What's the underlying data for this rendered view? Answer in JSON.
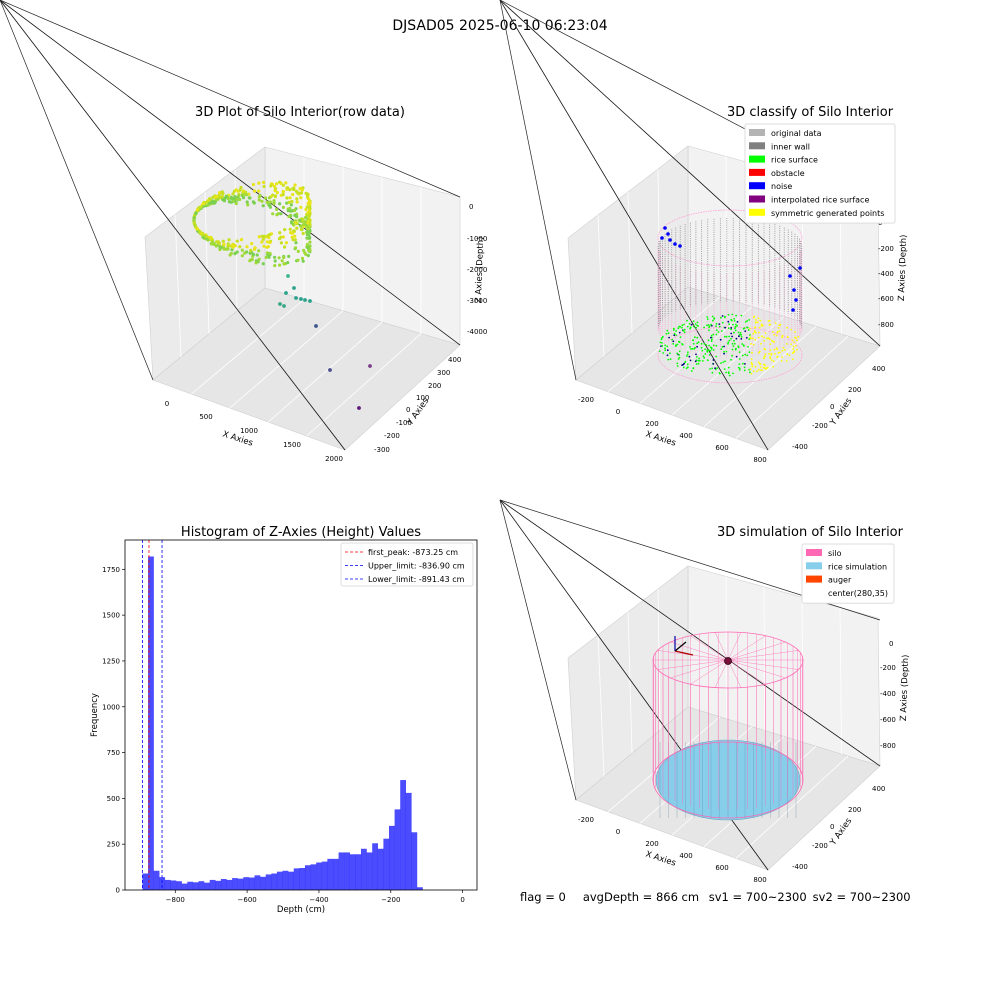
{
  "suptitle": "DJSAD05 2025-06-10 06:23:04",
  "panels": {
    "raw": {
      "title": "3D Plot of Silo Interior(row data)",
      "xlabel": "X Axies",
      "ylabel": "Y Axies",
      "zlabel": "Z Axies (Depth)",
      "xticks": [
        "0",
        "500",
        "1000",
        "1500",
        "2000"
      ],
      "yticks": [
        "400",
        "300",
        "200",
        "100",
        "0",
        "-100",
        "-200",
        "-300"
      ],
      "zticks": [
        "0",
        "-1000",
        "-2000",
        "-3000",
        "-4000"
      ]
    },
    "classify": {
      "title": "3D classify of Silo Interior",
      "xlabel": "X Axies",
      "ylabel": "Y Axies",
      "zlabel": "Z Axies (Depth)",
      "xticks": [
        "-200",
        "0",
        "200",
        "400",
        "600",
        "800"
      ],
      "yticks": [
        "400",
        "200",
        "0",
        "-200",
        "-400"
      ],
      "zticks": [
        "0",
        "-200",
        "-400",
        "-600",
        "-800"
      ],
      "legend": [
        {
          "label": "original data",
          "color": "#b3b3b3"
        },
        {
          "label": "inner wall",
          "color": "#808080"
        },
        {
          "label": "rice surface",
          "color": "#00ff00"
        },
        {
          "label": "obstacle",
          "color": "#ff0000"
        },
        {
          "label": "noise",
          "color": "#0000ff"
        },
        {
          "label": "interpolated rice surface",
          "color": "#800080"
        },
        {
          "label": "symmetric generated points",
          "color": "#ffff00"
        }
      ]
    },
    "simulation": {
      "title": "3D simulation of Silo Interior",
      "xlabel": "X Axies",
      "ylabel": "Y Axies",
      "zlabel": "Z Axies (Depth)",
      "xticks": [
        "-200",
        "0",
        "200",
        "400",
        "600",
        "800"
      ],
      "yticks": [
        "400",
        "200",
        "0",
        "-200",
        "-400"
      ],
      "zticks": [
        "0",
        "-200",
        "-400",
        "-600",
        "-800"
      ],
      "legend": [
        {
          "label": "silo",
          "color": "#ff69b4"
        },
        {
          "label": "rice simulation",
          "color": "#87ceeb"
        },
        {
          "label": "auger",
          "color": "#ff4500"
        },
        {
          "label": "center(280,35)",
          "color": ""
        }
      ]
    }
  },
  "footer": {
    "flag": "flag = 0",
    "avg": "avgDepth = 866 cm",
    "sv1": "sv1 = 700~2300",
    "sv2": "sv2 = 700~2300"
  },
  "chart_data": {
    "type": "bar",
    "title": "Histogram of Z-Axies (Height) Values",
    "xlabel": "Depth (cm)",
    "ylabel": "Frequency",
    "xlim": [
      -940,
      40
    ],
    "ylim": [
      0,
      1910
    ],
    "xticks": [
      -800,
      -600,
      -400,
      -200,
      0
    ],
    "yticks": [
      0,
      250,
      500,
      750,
      1000,
      1250,
      1500,
      1750
    ],
    "bin_width": 15.6,
    "bin_start": -891.4,
    "color": "#0000ff",
    "values": [
      90,
      1820,
      105,
      70,
      55,
      52,
      48,
      35,
      45,
      42,
      48,
      40,
      55,
      50,
      60,
      55,
      65,
      62,
      70,
      68,
      80,
      72,
      85,
      90,
      100,
      105,
      100,
      118,
      120,
      135,
      140,
      150,
      155,
      170,
      170,
      205,
      205,
      195,
      195,
      225,
      205,
      255,
      225,
      280,
      350,
      440,
      600,
      530,
      315,
      15
    ],
    "vlines": [
      {
        "label": "first_peak: -873.25 cm",
        "x": -873.25,
        "color": "#ff0000"
      },
      {
        "label": "Upper_limit: -836.90 cm",
        "x": -836.9,
        "color": "#0000ff"
      },
      {
        "label": "Lower_limit: -891.43 cm",
        "x": -891.43,
        "color": "#0000ff"
      }
    ]
  }
}
